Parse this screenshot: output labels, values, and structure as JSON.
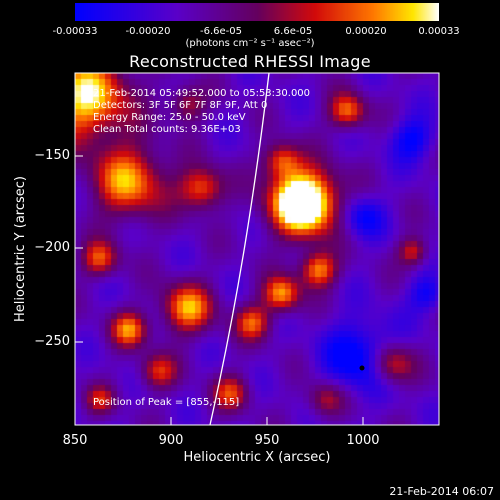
{
  "colorbar": {
    "ticks": [
      "-0.00033",
      "-0.00020",
      "-6.6e-05",
      "6.6e-05",
      "0.00020",
      "0.00033"
    ],
    "unit_label": "(photons cm⁻² s⁻¹ asec⁻²)",
    "min": -0.00033,
    "max": 0.00033
  },
  "chart_data": {
    "type": "heatmap",
    "title": "Reconstructed RHESSI Image",
    "xlabel": "Heliocentric X (arcsec)",
    "ylabel": "Heliocentric Y (arcsec)",
    "xlim": [
      850,
      1040
    ],
    "ylim": [
      -298,
      -122
    ],
    "xticks": [
      850,
      900,
      950,
      1000
    ],
    "yticks": [
      -150,
      -200,
      -250
    ],
    "x_tick_labels": [
      "850",
      "900",
      "950",
      "1000"
    ],
    "y_tick_labels": [
      "−150",
      "−200",
      "−250"
    ],
    "colormap": "rainbow-blue-purple-red-yellow-white",
    "peak_position": [
      855,
      -115
    ],
    "peak_marker": [
      1006,
      -267
    ]
  },
  "info": {
    "line1": "21-Feb-2014 05:49:52.000 to 05:53:30.000",
    "line2": "Detectors: 3F 5F 6F 7F 8F 9F, Att 0",
    "line3": "Energy Range: 25.0 - 50.0 keV",
    "line4": "Clean     Total counts: 9.36E+03",
    "peak_text": "Position of Peak = [855,-115]"
  },
  "timestamp": "21-Feb-2014 06:07"
}
